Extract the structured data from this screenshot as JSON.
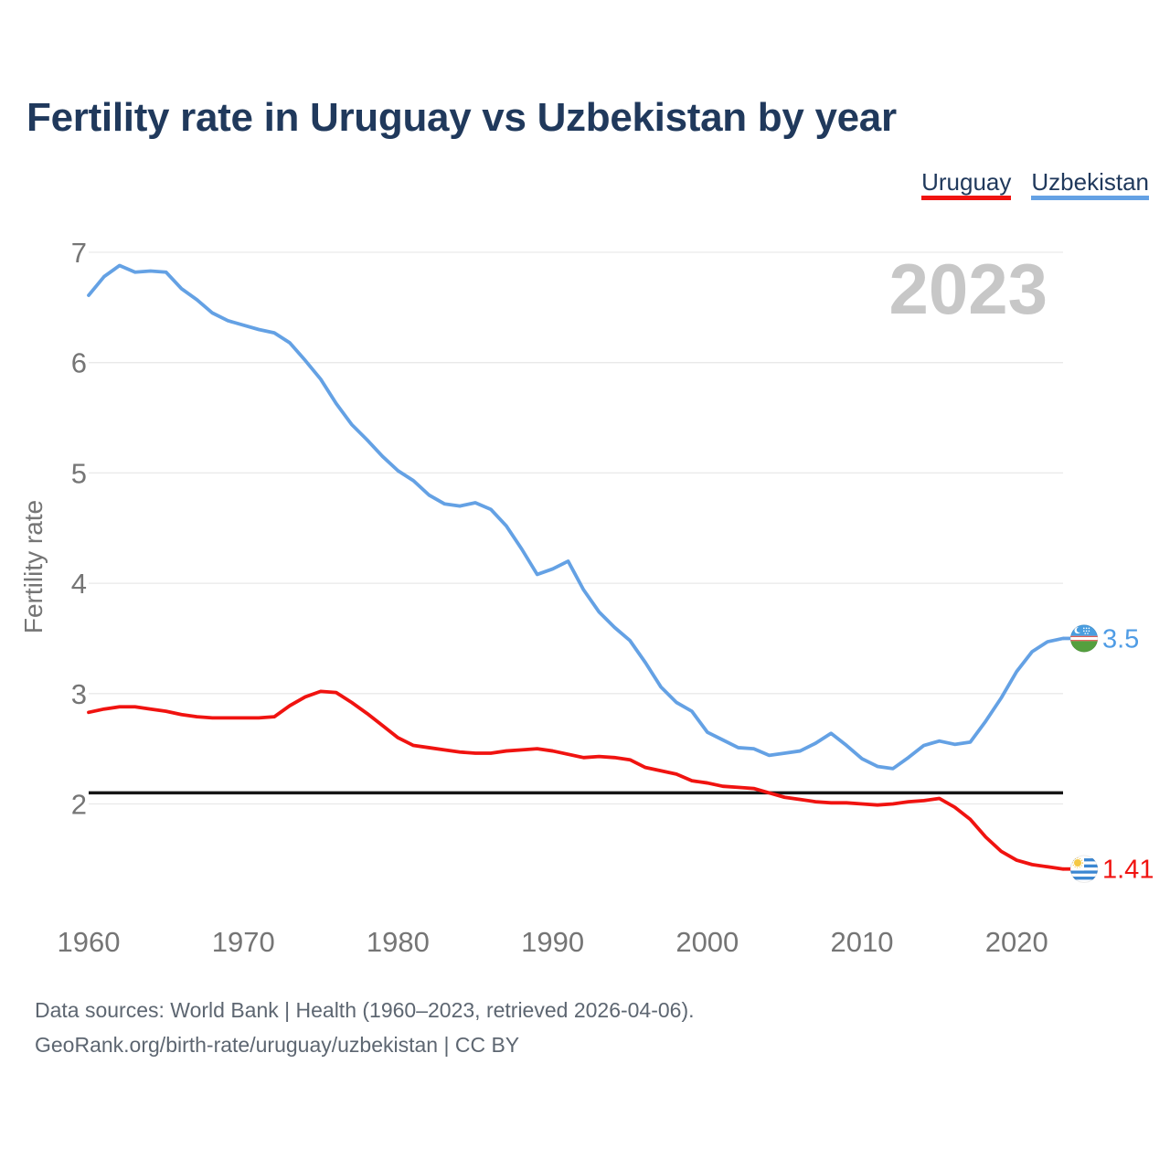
{
  "header": {
    "title": "Fertility rate in Uruguay vs Uzbekistan by year"
  },
  "legend": {
    "items": [
      {
        "label": "Uruguay",
        "color": "#f01310"
      },
      {
        "label": "Uzbekistan",
        "color": "#64a1e4"
      }
    ]
  },
  "watermark": "2023",
  "axes": {
    "y_label": "Fertility rate",
    "y_ticks": [
      7,
      6,
      5,
      4,
      3,
      2
    ],
    "x_ticks": [
      1960,
      1970,
      1980,
      1990,
      2000,
      2010,
      2020
    ]
  },
  "end_labels": [
    {
      "series": "Uzbekistan",
      "value": "3.5",
      "color": "#4f9ce5",
      "flag": "uzbekistan-flag"
    },
    {
      "series": "Uruguay",
      "value": "1.41",
      "color": "#f01310",
      "flag": "uruguay-flag"
    }
  ],
  "footer": {
    "line1": "Data sources: World Bank | Health (1960–2023, retrieved 2026-04-06).",
    "line2": "GeoRank.org/birth-rate/uruguay/uzbekistan | CC BY"
  },
  "chart_data": {
    "type": "line",
    "title": "Fertility rate in Uruguay vs Uzbekistan by year",
    "xlabel": "",
    "ylabel": "Fertility rate",
    "xlim": [
      1960,
      2023
    ],
    "ylim": [
      2,
      7
    ],
    "grid": "horizontal",
    "legend_position": "top-right",
    "reference_line": {
      "value": 2.1,
      "color": "#161616"
    },
    "x": [
      1960,
      1961,
      1962,
      1963,
      1964,
      1965,
      1966,
      1967,
      1968,
      1969,
      1970,
      1971,
      1972,
      1973,
      1974,
      1975,
      1976,
      1977,
      1978,
      1979,
      1980,
      1981,
      1982,
      1983,
      1984,
      1985,
      1986,
      1987,
      1988,
      1989,
      1990,
      1991,
      1992,
      1993,
      1994,
      1995,
      1996,
      1997,
      1998,
      1999,
      2000,
      2001,
      2002,
      2003,
      2004,
      2005,
      2006,
      2007,
      2008,
      2009,
      2010,
      2011,
      2012,
      2013,
      2014,
      2015,
      2016,
      2017,
      2018,
      2019,
      2020,
      2021,
      2022,
      2023
    ],
    "series": [
      {
        "name": "Uruguay",
        "color": "#f01310",
        "values": [
          2.83,
          2.86,
          2.88,
          2.88,
          2.86,
          2.84,
          2.81,
          2.79,
          2.78,
          2.78,
          2.78,
          2.78,
          2.79,
          2.89,
          2.97,
          3.02,
          3.01,
          2.92,
          2.82,
          2.71,
          2.6,
          2.53,
          2.51,
          2.49,
          2.47,
          2.46,
          2.46,
          2.48,
          2.49,
          2.5,
          2.48,
          2.45,
          2.42,
          2.43,
          2.42,
          2.4,
          2.33,
          2.3,
          2.27,
          2.21,
          2.19,
          2.16,
          2.15,
          2.14,
          2.1,
          2.06,
          2.04,
          2.02,
          2.01,
          2.01,
          2.0,
          1.99,
          2.0,
          2.02,
          2.03,
          2.05,
          1.97,
          1.86,
          1.7,
          1.57,
          1.49,
          1.45,
          1.43,
          1.41
        ]
      },
      {
        "name": "Uzbekistan",
        "color": "#64a1e4",
        "values": [
          6.61,
          6.78,
          6.88,
          6.82,
          6.83,
          6.82,
          6.67,
          6.57,
          6.45,
          6.38,
          6.34,
          6.3,
          6.27,
          6.18,
          6.02,
          5.85,
          5.63,
          5.44,
          5.3,
          5.15,
          5.02,
          4.93,
          4.8,
          4.72,
          4.7,
          4.73,
          4.67,
          4.52,
          4.31,
          4.08,
          4.13,
          4.2,
          3.94,
          3.74,
          3.6,
          3.48,
          3.28,
          3.06,
          2.92,
          2.84,
          2.65,
          2.58,
          2.51,
          2.5,
          2.44,
          2.46,
          2.48,
          2.55,
          2.64,
          2.53,
          2.41,
          2.34,
          2.32,
          2.42,
          2.53,
          2.57,
          2.54,
          2.56,
          2.75,
          2.96,
          3.2,
          3.38,
          3.47,
          3.5
        ]
      }
    ]
  }
}
